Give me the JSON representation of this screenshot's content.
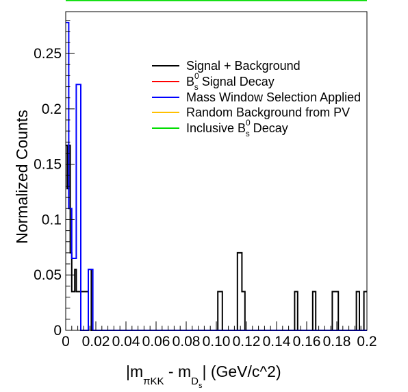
{
  "chart_data": {
    "type": "histogram",
    "title": "",
    "ylabel": "Normalized Counts",
    "xlabel": {
      "parts": [
        {
          "text": "|m"
        },
        {
          "text": "πKK",
          "sub": true
        },
        {
          "text": " - m"
        },
        {
          "text": "D",
          "sub": true
        },
        {
          "text": "s",
          "subsub": true
        },
        {
          "text": "| (GeV/c^2)"
        }
      ]
    },
    "xlim": [
      0,
      0.2
    ],
    "ylim": [
      0,
      0.2878
    ],
    "x_ticks": [
      {
        "value": 0.0,
        "label": "0"
      },
      {
        "value": 0.02,
        "label": "0.02"
      },
      {
        "value": 0.04,
        "label": "0.04"
      },
      {
        "value": 0.06,
        "label": "0.06"
      },
      {
        "value": 0.08,
        "label": "0.08"
      },
      {
        "value": 0.1,
        "label": "0.10"
      },
      {
        "value": 0.12,
        "label": "0.12"
      },
      {
        "value": 0.14,
        "label": "0.14"
      },
      {
        "value": 0.16,
        "label": "0.16"
      },
      {
        "value": 0.18,
        "label": "0.18"
      },
      {
        "value": 0.2,
        "label": "0.2"
      }
    ],
    "y_ticks": [
      {
        "value": 0.0,
        "label": "0"
      },
      {
        "value": 0.05,
        "label": "0.05"
      },
      {
        "value": 0.1,
        "label": "0.1"
      },
      {
        "value": 0.15,
        "label": "0.15"
      },
      {
        "value": 0.2,
        "label": "0.2"
      },
      {
        "value": 0.25,
        "label": "0.25"
      }
    ],
    "bin_width": 0.001,
    "legend_position": "top-right",
    "series": [
      {
        "name": "Signal + Background",
        "color": "#000000",
        "bins": [
          [
            0.0,
            0.167
          ],
          [
            0.001,
            0.128
          ],
          [
            0.002,
            0.167
          ],
          [
            0.003,
            0.07
          ],
          [
            0.004,
            0.035
          ],
          [
            0.005,
            0.035
          ],
          [
            0.006,
            0.055
          ],
          [
            0.007,
            0.035
          ],
          [
            0.008,
            0.035
          ],
          [
            0.009,
            0.035
          ],
          [
            0.01,
            0.035
          ],
          [
            0.011,
            0.035
          ],
          [
            0.012,
            0.035
          ],
          [
            0.013,
            0.035
          ],
          [
            0.014,
            0.035
          ],
          [
            0.015,
            0.055
          ],
          [
            0.016,
            0.055
          ],
          [
            0.017,
            0.0
          ],
          [
            0.018,
            0.0
          ],
          [
            0.101,
            0.035
          ],
          [
            0.102,
            0.035
          ],
          [
            0.103,
            0.035
          ],
          [
            0.114,
            0.07
          ],
          [
            0.115,
            0.07
          ],
          [
            0.116,
            0.07
          ],
          [
            0.117,
            0.035
          ],
          [
            0.118,
            0.035
          ],
          [
            0.152,
            0.035
          ],
          [
            0.153,
            0.035
          ],
          [
            0.164,
            0.035
          ],
          [
            0.165,
            0.035
          ],
          [
            0.177,
            0.035
          ],
          [
            0.178,
            0.035
          ],
          [
            0.179,
            0.035
          ],
          [
            0.18,
            0.035
          ],
          [
            0.193,
            0.035
          ],
          [
            0.194,
            0.035
          ],
          [
            0.198,
            0.035
          ],
          [
            0.199,
            0.035
          ]
        ]
      },
      {
        "name": "B_s^0 Signal Decay",
        "label_parts": [
          {
            "text": "B"
          },
          {
            "text": "s",
            "sub": true,
            "sup": "0"
          },
          {
            "text": " Signal Decay"
          }
        ],
        "color": "#ff0000",
        "bins": []
      },
      {
        "name": "Mass Window Selection Applied",
        "color": "#0000ff",
        "bins": [
          [
            0.0,
            0.278
          ],
          [
            0.001,
            0.278
          ],
          [
            0.002,
            0.11
          ],
          [
            0.003,
            0.11
          ],
          [
            0.004,
            0.065
          ],
          [
            0.005,
            0.065
          ],
          [
            0.006,
            0.065
          ],
          [
            0.007,
            0.222
          ],
          [
            0.008,
            0.222
          ],
          [
            0.009,
            0.222
          ],
          [
            0.01,
            0.0
          ],
          [
            0.011,
            0.0
          ],
          [
            0.012,
            0.0
          ],
          [
            0.013,
            0.0
          ],
          [
            0.014,
            0.0
          ],
          [
            0.015,
            0.055
          ],
          [
            0.016,
            0.055
          ],
          [
            0.017,
            0.055
          ]
        ]
      },
      {
        "name": "Random Background from PV",
        "color": "#ffc000",
        "bins": []
      },
      {
        "name": "Inclusive B_s^0 Decay",
        "label_parts": [
          {
            "text": "Inclusive B"
          },
          {
            "text": "s",
            "sub": true,
            "sup": "0"
          },
          {
            "text": " Decay"
          }
        ],
        "color": "#00dd00",
        "bins": []
      }
    ]
  }
}
